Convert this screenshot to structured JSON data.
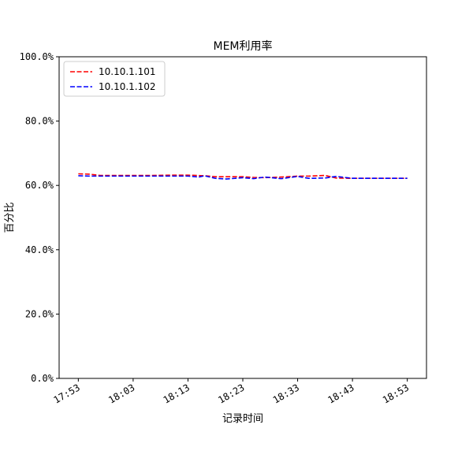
{
  "chart_data": {
    "type": "line",
    "title": "MEM利用率",
    "xlabel": "记录时间",
    "ylabel": "百分比",
    "ylim": [
      0,
      100
    ],
    "y_ticks": [
      0,
      20,
      40,
      60,
      80,
      100
    ],
    "y_tick_labels": [
      "0.0%",
      "20.0%",
      "40.0%",
      "60.0%",
      "80.0%",
      "100.0%"
    ],
    "x_tick_labels": [
      "17:53",
      "18:03",
      "18:13",
      "18:23",
      "18:33",
      "18:43",
      "18:53"
    ],
    "x_ticks_min": [
      53,
      63,
      73,
      83,
      93,
      103,
      113
    ],
    "x_unit_note": "minutes after 17:00",
    "xlim": [
      49.5,
      116.5
    ],
    "grid": false,
    "legend_position": "top-left",
    "series": [
      {
        "name": "10.10.1.101",
        "color": "#ff0000",
        "style": "dashed",
        "x": [
          53,
          55,
          57,
          60,
          63,
          66,
          70,
          73,
          76,
          78,
          80,
          83,
          85,
          87,
          90,
          93,
          95,
          98,
          100,
          103,
          106,
          110,
          113
        ],
        "values": [
          63.6,
          63.5,
          63.1,
          63.1,
          63.1,
          63.1,
          63.2,
          63.2,
          63.0,
          62.7,
          62.7,
          62.7,
          62.5,
          62.4,
          62.6,
          62.9,
          62.9,
          63.1,
          62.3,
          62.2,
          62.2,
          62.2,
          62.2
        ]
      },
      {
        "name": "10.10.1.102",
        "color": "#0000ff",
        "style": "dashed",
        "x": [
          53,
          55,
          57,
          60,
          63,
          66,
          70,
          73,
          75,
          76,
          78,
          80,
          83,
          85,
          87,
          90,
          93,
          95,
          98,
          100,
          103,
          106,
          110,
          113
        ],
        "values": [
          63.0,
          62.9,
          62.9,
          62.9,
          62.9,
          62.9,
          62.9,
          62.9,
          62.6,
          63.0,
          62.2,
          62.0,
          62.4,
          62.1,
          62.6,
          62.1,
          62.8,
          62.2,
          62.3,
          62.8,
          62.2,
          62.2,
          62.2,
          62.2
        ]
      }
    ]
  }
}
